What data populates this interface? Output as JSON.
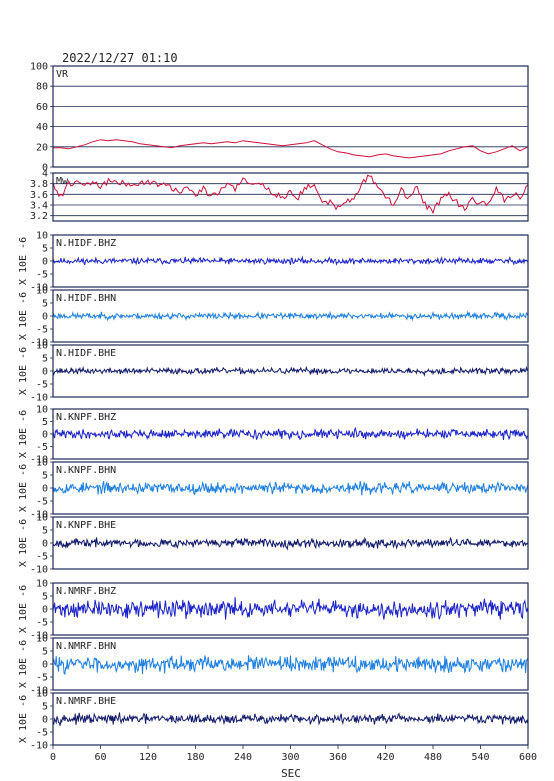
{
  "title": "2022/12/27 01:10",
  "x_axis": {
    "label": "SEC",
    "range": [
      0,
      600
    ],
    "ticks": [
      0,
      60,
      120,
      180,
      240,
      300,
      360,
      420,
      480,
      540,
      600
    ]
  },
  "left_axis_label": "X 10E -6",
  "colors": {
    "vr_mw_line": "#d0103a",
    "bhz": "#1a22c8",
    "bhn": "#1e7fe0",
    "bhe": "#101a6a",
    "frame": "#1b2a55"
  },
  "chart_data": [
    {
      "type": "line",
      "name": "VR",
      "label": "VR",
      "ylim": [
        0,
        100
      ],
      "yticks": [
        0,
        20,
        40,
        60,
        80,
        100
      ],
      "grid": true,
      "x": [
        0,
        10,
        20,
        30,
        40,
        50,
        60,
        70,
        80,
        90,
        100,
        110,
        120,
        130,
        140,
        150,
        160,
        170,
        180,
        190,
        200,
        210,
        220,
        230,
        240,
        250,
        260,
        270,
        280,
        290,
        300,
        310,
        320,
        330,
        340,
        350,
        360,
        370,
        380,
        390,
        400,
        410,
        420,
        430,
        440,
        450,
        460,
        470,
        480,
        490,
        500,
        510,
        520,
        530,
        540,
        550,
        560,
        570,
        580,
        590,
        600
      ],
      "values": [
        19,
        19,
        18,
        20,
        22,
        25,
        27,
        26,
        27,
        26,
        25,
        23,
        22,
        21,
        20,
        19,
        21,
        22,
        23,
        24,
        23,
        24,
        25,
        24,
        26,
        25,
        24,
        23,
        22,
        21,
        22,
        23,
        24,
        26,
        22,
        18,
        15,
        14,
        12,
        11,
        10,
        12,
        13,
        11,
        10,
        9,
        10,
        11,
        12,
        13,
        16,
        18,
        20,
        21,
        16,
        13,
        15,
        18,
        21,
        16,
        20
      ]
    },
    {
      "type": "line",
      "name": "Mw",
      "label": "Mw",
      "ylim": [
        3.1,
        4.0
      ],
      "yticks": [
        3.2,
        3.4,
        3.6,
        3.8,
        4.0
      ],
      "grid": true,
      "x": [
        0,
        10,
        20,
        30,
        40,
        50,
        60,
        70,
        80,
        90,
        100,
        110,
        120,
        130,
        140,
        150,
        160,
        170,
        180,
        190,
        200,
        210,
        220,
        230,
        240,
        250,
        260,
        270,
        280,
        290,
        300,
        310,
        320,
        330,
        340,
        350,
        360,
        370,
        380,
        390,
        400,
        410,
        420,
        430,
        440,
        450,
        460,
        470,
        480,
        490,
        500,
        510,
        520,
        530,
        540,
        550,
        560,
        570,
        580,
        590,
        600
      ],
      "values": [
        3.8,
        3.55,
        3.8,
        3.85,
        3.8,
        3.82,
        3.75,
        3.85,
        3.8,
        3.82,
        3.75,
        3.8,
        3.85,
        3.8,
        3.78,
        3.7,
        3.65,
        3.75,
        3.6,
        3.72,
        3.55,
        3.65,
        3.8,
        3.7,
        3.9,
        3.75,
        3.85,
        3.7,
        3.6,
        3.55,
        3.65,
        3.55,
        3.75,
        3.8,
        3.4,
        3.45,
        3.35,
        3.45,
        3.5,
        3.8,
        3.95,
        3.75,
        3.55,
        3.4,
        3.7,
        3.5,
        3.75,
        3.4,
        3.3,
        3.5,
        3.6,
        3.45,
        3.3,
        3.55,
        3.4,
        3.45,
        3.7,
        3.5,
        3.6,
        3.55,
        3.78
      ]
    },
    {
      "type": "line",
      "name": "N.HIDF.BHZ",
      "label": "N.HIDF.BHZ",
      "ylim": [
        -10,
        10
      ],
      "yticks": [
        -10,
        -5,
        0,
        5,
        10
      ],
      "component": "bhz",
      "amplitude": 0.7,
      "seed": 11
    },
    {
      "type": "line",
      "name": "N.HIDF.BHN",
      "label": "N.HIDF.BHN",
      "ylim": [
        -10,
        10
      ],
      "yticks": [
        -10,
        -5,
        0,
        5,
        10
      ],
      "component": "bhn",
      "amplitude": 0.7,
      "seed": 23
    },
    {
      "type": "line",
      "name": "N.HIDF.BHE",
      "label": "N.HIDF.BHE",
      "ylim": [
        -10,
        10
      ],
      "yticks": [
        -10,
        -5,
        0,
        5,
        10
      ],
      "component": "bhe",
      "amplitude": 0.7,
      "seed": 37
    },
    {
      "type": "line",
      "name": "N.KNPF.BHZ",
      "label": "N.KNPF.BHZ",
      "ylim": [
        -10,
        10
      ],
      "yticks": [
        -10,
        -5,
        0,
        5,
        10
      ],
      "component": "bhz",
      "amplitude": 1.1,
      "seed": 41
    },
    {
      "type": "line",
      "name": "N.KNPF.BHN",
      "label": "N.KNPF.BHN",
      "ylim": [
        -10,
        10
      ],
      "yticks": [
        -10,
        -5,
        0,
        5,
        10
      ],
      "component": "bhn",
      "amplitude": 1.3,
      "seed": 53
    },
    {
      "type": "line",
      "name": "N.KNPF.BHE",
      "label": "N.KNPF.BHE",
      "ylim": [
        -10,
        10
      ],
      "yticks": [
        -10,
        -5,
        0,
        5,
        10
      ],
      "component": "bhe",
      "amplitude": 1.0,
      "seed": 67
    },
    {
      "type": "line",
      "name": "N.NMRF.BHZ",
      "label": "N.NMRF.BHZ",
      "ylim": [
        -10,
        10
      ],
      "yticks": [
        -10,
        -5,
        0,
        5,
        10
      ],
      "component": "bhz",
      "amplitude": 2.0,
      "seed": 71
    },
    {
      "type": "line",
      "name": "N.NMRF.BHN",
      "label": "N.NMRF.BHN",
      "ylim": [
        -10,
        10
      ],
      "yticks": [
        -10,
        -5,
        0,
        5,
        10
      ],
      "component": "bhn",
      "amplitude": 1.8,
      "seed": 83
    },
    {
      "type": "line",
      "name": "N.NMRF.BHE",
      "label": "N.NMRF.BHE",
      "ylim": [
        -10,
        10
      ],
      "yticks": [
        -10,
        -5,
        0,
        5,
        10
      ],
      "component": "bhe",
      "amplitude": 1.1,
      "seed": 97
    }
  ]
}
